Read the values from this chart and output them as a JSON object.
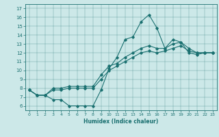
{
  "xlabel": "Humidex (Indice chaleur)",
  "ylabel": "",
  "bg_color": "#cce8e8",
  "line_color": "#1a7070",
  "xlim": [
    -0.5,
    23.5
  ],
  "ylim": [
    5.5,
    17.5
  ],
  "xticks": [
    0,
    1,
    2,
    3,
    4,
    5,
    6,
    7,
    8,
    9,
    10,
    11,
    12,
    13,
    14,
    15,
    16,
    17,
    18,
    19,
    20,
    21,
    22,
    23
  ],
  "yticks": [
    6,
    7,
    8,
    9,
    10,
    11,
    12,
    13,
    14,
    15,
    16,
    17
  ],
  "line1_x": [
    0,
    1,
    2,
    3,
    4,
    5,
    6,
    7,
    8,
    9,
    10,
    11,
    12,
    13,
    14,
    15,
    16,
    17,
    18,
    19,
    20,
    21,
    22,
    23
  ],
  "line1_y": [
    7.8,
    7.2,
    7.2,
    6.7,
    6.7,
    6.0,
    6.0,
    6.0,
    6.0,
    7.8,
    10.2,
    11.5,
    13.5,
    13.8,
    15.5,
    16.3,
    14.8,
    12.5,
    13.5,
    13.2,
    12.0,
    11.8,
    12.0,
    12.0
  ],
  "line2_x": [
    0,
    1,
    2,
    3,
    4,
    5,
    6,
    7,
    8,
    9,
    10,
    11,
    12,
    13,
    14,
    15,
    16,
    17,
    18,
    19,
    20,
    21,
    22,
    23
  ],
  "line2_y": [
    7.8,
    7.2,
    7.2,
    8.0,
    8.0,
    8.2,
    8.2,
    8.2,
    8.2,
    9.5,
    10.5,
    10.8,
    11.5,
    12.0,
    12.5,
    12.8,
    12.5,
    12.5,
    13.0,
    13.2,
    12.5,
    12.0,
    12.0,
    12.0
  ],
  "line3_x": [
    0,
    1,
    2,
    3,
    4,
    5,
    6,
    7,
    8,
    9,
    10,
    11,
    12,
    13,
    14,
    15,
    16,
    17,
    18,
    19,
    20,
    21,
    22,
    23
  ],
  "line3_y": [
    7.8,
    7.2,
    7.2,
    7.8,
    7.8,
    8.0,
    8.0,
    8.0,
    8.0,
    9.0,
    10.0,
    10.5,
    11.0,
    11.5,
    12.0,
    12.2,
    12.0,
    12.2,
    12.5,
    12.8,
    12.2,
    12.0,
    12.0,
    12.0
  ]
}
